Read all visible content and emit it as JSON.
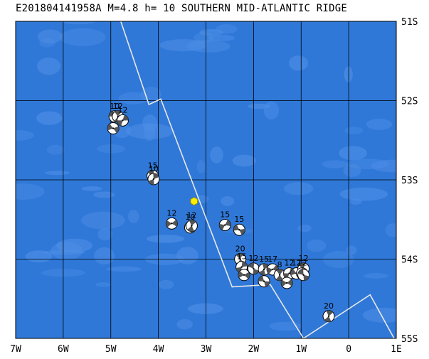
{
  "title": "E201804141958A M=4.8 h= 10 SOUTHERN MID-ATLANTIC RIDGE",
  "colors": {
    "ocean": "#2f78d8",
    "ocean_light": "#4f8fe6",
    "ridge": "#e8e8e8",
    "grid": "#000000",
    "epicenter": "#ffee00"
  },
  "map": {
    "lon_range": [
      -7,
      1
    ],
    "lat_range": [
      -55,
      -51
    ],
    "lon_ticks": [
      {
        "value": -7,
        "label": "7W"
      },
      {
        "value": -6,
        "label": "6W"
      },
      {
        "value": -5,
        "label": "5W"
      },
      {
        "value": -4,
        "label": "4W"
      },
      {
        "value": -3,
        "label": "3W"
      },
      {
        "value": -2,
        "label": "2W"
      },
      {
        "value": -1,
        "label": "1W"
      },
      {
        "value": 0,
        "label": "0"
      },
      {
        "value": 1,
        "label": "1E"
      }
    ],
    "lat_ticks": [
      {
        "value": -51,
        "label": "51S"
      },
      {
        "value": -52,
        "label": "52S"
      },
      {
        "value": -53,
        "label": "53S"
      },
      {
        "value": -54,
        "label": "54S"
      },
      {
        "value": -55,
        "label": "55S"
      }
    ],
    "plate_boundary": [
      [
        -4.79,
        -51.0
      ],
      [
        -4.2,
        -52.05
      ],
      [
        -3.95,
        -51.98
      ],
      [
        -2.45,
        -54.35
      ],
      [
        -1.65,
        -54.32
      ],
      [
        -0.95,
        -55.0
      ]
    ],
    "plate_boundary_2": [
      [
        -0.95,
        -55.0
      ],
      [
        0.45,
        -54.45
      ],
      [
        1.0,
        -55.05
      ]
    ],
    "epicenter": {
      "lon": -3.25,
      "lat": -53.27
    },
    "events": [
      {
        "lon": -4.92,
        "lat": -52.2,
        "depth": "10"
      },
      {
        "lon": -4.85,
        "lat": -52.2,
        "depth": "12"
      },
      {
        "lon": -4.75,
        "lat": -52.25,
        "depth": "12"
      },
      {
        "lon": -4.95,
        "lat": -52.35,
        "depth": ""
      },
      {
        "lon": -4.12,
        "lat": -52.95,
        "depth": "15"
      },
      {
        "lon": -4.1,
        "lat": -52.99,
        "depth": "10"
      },
      {
        "lon": -3.72,
        "lat": -53.55,
        "depth": "12"
      },
      {
        "lon": -3.33,
        "lat": -53.6,
        "depth": "10"
      },
      {
        "lon": -3.3,
        "lat": -53.58,
        "depth": "12"
      },
      {
        "lon": -2.6,
        "lat": -53.57,
        "depth": "15"
      },
      {
        "lon": -2.3,
        "lat": -53.63,
        "depth": "15"
      },
      {
        "lon": -2.28,
        "lat": -54.0,
        "depth": "20"
      },
      {
        "lon": -2.25,
        "lat": -54.1,
        "depth": "15"
      },
      {
        "lon": -2.2,
        "lat": -54.2,
        "depth": ""
      },
      {
        "lon": -2.0,
        "lat": -54.12,
        "depth": "12"
      },
      {
        "lon": -1.78,
        "lat": -54.13,
        "depth": "15"
      },
      {
        "lon": -1.6,
        "lat": -54.13,
        "depth": "17"
      },
      {
        "lon": -1.78,
        "lat": -54.28,
        "depth": ""
      },
      {
        "lon": -1.45,
        "lat": -54.2,
        "depth": "8"
      },
      {
        "lon": -1.25,
        "lat": -54.18,
        "depth": "12"
      },
      {
        "lon": -1.1,
        "lat": -54.18,
        "depth": "12"
      },
      {
        "lon": -0.95,
        "lat": -54.12,
        "depth": "12"
      },
      {
        "lon": -0.98,
        "lat": -54.18,
        "depth": "12"
      },
      {
        "lon": -1.3,
        "lat": -54.3,
        "depth": ""
      },
      {
        "lon": -0.95,
        "lat": -54.2,
        "depth": ""
      },
      {
        "lon": -0.42,
        "lat": -54.72,
        "depth": "20"
      }
    ]
  }
}
